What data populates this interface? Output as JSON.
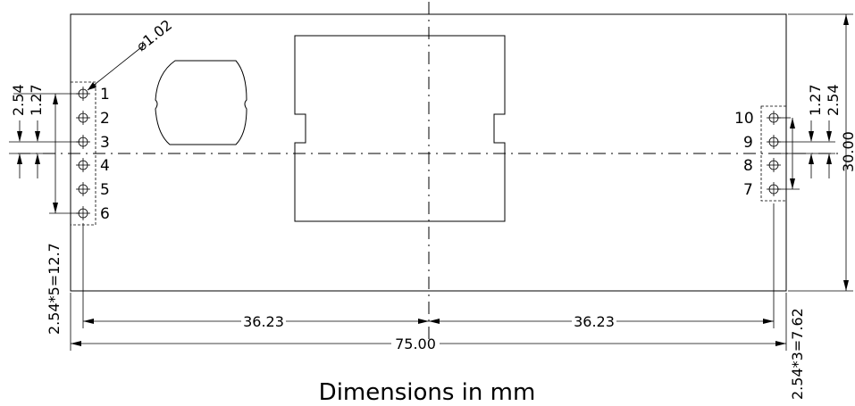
{
  "diagram": {
    "caption": "Dimensions in mm",
    "hole_diameter": "⌀1.02",
    "left_pins": [
      "1",
      "2",
      "3",
      "4",
      "5",
      "6"
    ],
    "right_pins": [
      "10",
      "9",
      "8",
      "7"
    ],
    "dims": {
      "half_width_left": "36.23",
      "half_width_right": "36.23",
      "total_width": "75.00",
      "height": "30.00",
      "pitch_left": "2.54",
      "half_pitch_left": "1.27",
      "pitch_right": "2.54",
      "half_pitch_right": "1.27",
      "left_span": "2.54*5=12.7",
      "right_span": "2.54*3=7.62"
    }
  }
}
